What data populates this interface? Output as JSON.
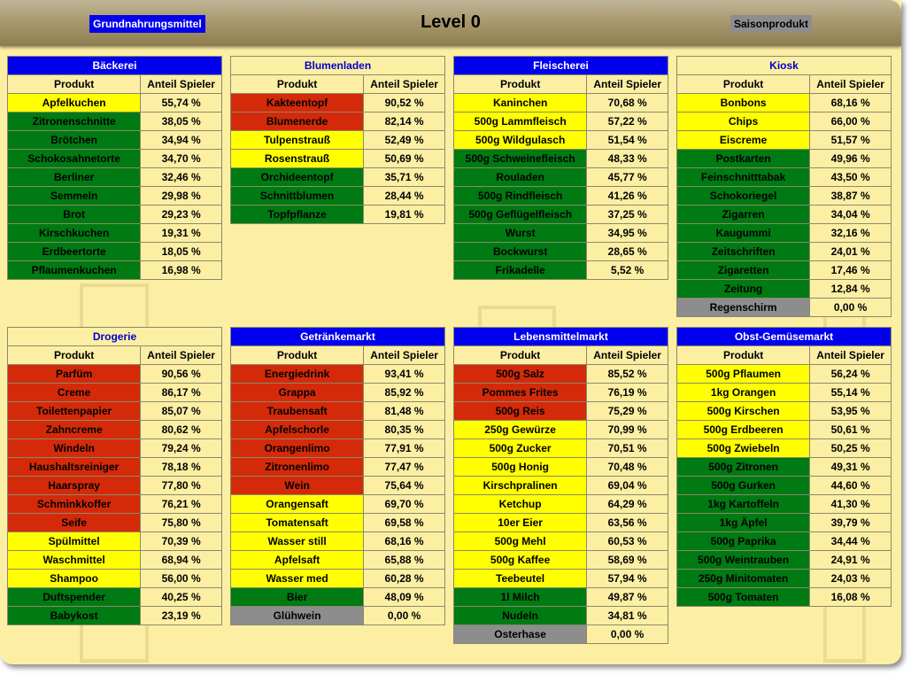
{
  "header": {
    "legend_basic": "Grundnahrungsmittel",
    "title": "Level 0",
    "legend_season": "Saisonprodukt"
  },
  "colors": {
    "red": "#d42a0a",
    "yellow": "#ffff00",
    "green": "#007a12",
    "gray": "#8d8d8d",
    "basic": "#0000ee",
    "background": "#fcefa4"
  },
  "col_product": "Produkt",
  "col_share": "Anteil Spieler",
  "shops": [
    {
      "name": "Bäckerei",
      "style": "blue",
      "rows": [
        {
          "product": "Apfelkuchen",
          "share": "55,74 %",
          "color": "yellow"
        },
        {
          "product": "Zitronenschnitte",
          "share": "38,05 %",
          "color": "green"
        },
        {
          "product": "Brötchen",
          "share": "34,94 %",
          "color": "green"
        },
        {
          "product": "Schokosahnetorte",
          "share": "34,70 %",
          "color": "green"
        },
        {
          "product": "Berliner",
          "share": "32,46 %",
          "color": "green"
        },
        {
          "product": "Semmeln",
          "share": "29,98 %",
          "color": "green"
        },
        {
          "product": "Brot",
          "share": "29,23 %",
          "color": "green"
        },
        {
          "product": "Kirschkuchen",
          "share": "19,31 %",
          "color": "green"
        },
        {
          "product": "Erdbeertorte",
          "share": "18,05 %",
          "color": "green"
        },
        {
          "product": "Pflaumenkuchen",
          "share": "16,98 %",
          "color": "green"
        }
      ]
    },
    {
      "name": "Blumenladen",
      "style": "pale",
      "rows": [
        {
          "product": "Kakteentopf",
          "share": "90,52 %",
          "color": "red"
        },
        {
          "product": "Blumenerde",
          "share": "82,14 %",
          "color": "red"
        },
        {
          "product": "Tulpenstrauß",
          "share": "52,49 %",
          "color": "yellow"
        },
        {
          "product": "Rosenstrauß",
          "share": "50,69 %",
          "color": "yellow"
        },
        {
          "product": "Orchideentopf",
          "share": "35,71 %",
          "color": "green"
        },
        {
          "product": "Schnittblumen",
          "share": "28,44 %",
          "color": "green"
        },
        {
          "product": "Topfpflanze",
          "share": "19,81 %",
          "color": "green"
        }
      ]
    },
    {
      "name": "Fleischerei",
      "style": "blue",
      "rows": [
        {
          "product": "Kaninchen",
          "share": "70,68 %",
          "color": "yellow"
        },
        {
          "product": "500g Lammfleisch",
          "share": "57,22 %",
          "color": "yellow"
        },
        {
          "product": "500g Wildgulasch",
          "share": "51,54 %",
          "color": "yellow"
        },
        {
          "product": "500g Schweinefleisch",
          "share": "48,33 %",
          "color": "green"
        },
        {
          "product": "Rouladen",
          "share": "45,77 %",
          "color": "green"
        },
        {
          "product": "500g Rindfleisch",
          "share": "41,26 %",
          "color": "green"
        },
        {
          "product": "500g Geflügelfleisch",
          "share": "37,25 %",
          "color": "green"
        },
        {
          "product": "Wurst",
          "share": "34,95 %",
          "color": "green"
        },
        {
          "product": "Bockwurst",
          "share": "28,65 %",
          "color": "green"
        },
        {
          "product": "Frikadelle",
          "share": "5,52 %",
          "color": "green"
        }
      ]
    },
    {
      "name": "Kiosk",
      "style": "pale",
      "rows": [
        {
          "product": "Bonbons",
          "share": "68,16 %",
          "color": "yellow"
        },
        {
          "product": "Chips",
          "share": "66,00 %",
          "color": "yellow"
        },
        {
          "product": "Eiscreme",
          "share": "51,57 %",
          "color": "yellow"
        },
        {
          "product": "Postkarten",
          "share": "49,96 %",
          "color": "green"
        },
        {
          "product": "Feinschnitttabak",
          "share": "43,50 %",
          "color": "green"
        },
        {
          "product": "Schokoriegel",
          "share": "38,87 %",
          "color": "green"
        },
        {
          "product": "Zigarren",
          "share": "34,04 %",
          "color": "green"
        },
        {
          "product": "Kaugummi",
          "share": "32,16 %",
          "color": "green"
        },
        {
          "product": "Zeitschriften",
          "share": "24,01 %",
          "color": "green"
        },
        {
          "product": "Zigaretten",
          "share": "17,46 %",
          "color": "green"
        },
        {
          "product": "Zeitung",
          "share": "12,84 %",
          "color": "green"
        },
        {
          "product": "Regenschirm",
          "share": "0,00 %",
          "color": "gray"
        }
      ]
    },
    {
      "name": "Drogerie",
      "style": "pale",
      "rows": [
        {
          "product": "Parfüm",
          "share": "90,56 %",
          "color": "red"
        },
        {
          "product": "Creme",
          "share": "86,17 %",
          "color": "red"
        },
        {
          "product": "Toilettenpapier",
          "share": "85,07 %",
          "color": "red"
        },
        {
          "product": "Zahncreme",
          "share": "80,62 %",
          "color": "red"
        },
        {
          "product": "Windeln",
          "share": "79,24 %",
          "color": "red"
        },
        {
          "product": "Haushaltsreiniger",
          "share": "78,18 %",
          "color": "red"
        },
        {
          "product": "Haarspray",
          "share": "77,80 %",
          "color": "red"
        },
        {
          "product": "Schminkkoffer",
          "share": "76,21 %",
          "color": "red"
        },
        {
          "product": "Seife",
          "share": "75,80 %",
          "color": "red"
        },
        {
          "product": "Spülmittel",
          "share": "70,39 %",
          "color": "yellow"
        },
        {
          "product": "Waschmittel",
          "share": "68,94 %",
          "color": "yellow"
        },
        {
          "product": "Shampoo",
          "share": "56,00 %",
          "color": "yellow"
        },
        {
          "product": "Duftspender",
          "share": "40,25 %",
          "color": "green"
        },
        {
          "product": "Babykost",
          "share": "23,19 %",
          "color": "green"
        }
      ]
    },
    {
      "name": "Getränkemarkt",
      "style": "blue",
      "rows": [
        {
          "product": "Energiedrink",
          "share": "93,41 %",
          "color": "red"
        },
        {
          "product": "Grappa",
          "share": "85,92 %",
          "color": "red"
        },
        {
          "product": "Traubensaft",
          "share": "81,48 %",
          "color": "red"
        },
        {
          "product": "Apfelschorle",
          "share": "80,35 %",
          "color": "red"
        },
        {
          "product": "Orangenlimo",
          "share": "77,91 %",
          "color": "red"
        },
        {
          "product": "Zitronenlimo",
          "share": "77,47 %",
          "color": "red"
        },
        {
          "product": "Wein",
          "share": "75,64 %",
          "color": "red"
        },
        {
          "product": "Orangensaft",
          "share": "69,70 %",
          "color": "yellow"
        },
        {
          "product": "Tomatensaft",
          "share": "69,58 %",
          "color": "yellow"
        },
        {
          "product": "Wasser still",
          "share": "68,16 %",
          "color": "yellow"
        },
        {
          "product": "Apfelsaft",
          "share": "65,88 %",
          "color": "yellow"
        },
        {
          "product": "Wasser med",
          "share": "60,28 %",
          "color": "yellow"
        },
        {
          "product": "Bier",
          "share": "48,09 %",
          "color": "green"
        },
        {
          "product": "Glühwein",
          "share": "0,00 %",
          "color": "gray"
        }
      ]
    },
    {
      "name": "Lebensmittelmarkt",
      "style": "blue",
      "rows": [
        {
          "product": "500g Salz",
          "share": "85,52 %",
          "color": "red"
        },
        {
          "product": "Pommes Frites",
          "share": "76,19 %",
          "color": "red"
        },
        {
          "product": "500g Reis",
          "share": "75,29 %",
          "color": "red"
        },
        {
          "product": "250g Gewürze",
          "share": "70,99 %",
          "color": "yellow"
        },
        {
          "product": "500g Zucker",
          "share": "70,51 %",
          "color": "yellow"
        },
        {
          "product": "500g Honig",
          "share": "70,48 %",
          "color": "yellow"
        },
        {
          "product": "Kirschpralinen",
          "share": "69,04 %",
          "color": "yellow"
        },
        {
          "product": "Ketchup",
          "share": "64,29 %",
          "color": "yellow"
        },
        {
          "product": "10er Eier",
          "share": "63,56 %",
          "color": "yellow"
        },
        {
          "product": "500g Mehl",
          "share": "60,53 %",
          "color": "yellow"
        },
        {
          "product": "500g Kaffee",
          "share": "58,69 %",
          "color": "yellow"
        },
        {
          "product": "Teebeutel",
          "share": "57,94 %",
          "color": "yellow"
        },
        {
          "product": "1l Milch",
          "share": "49,87 %",
          "color": "green"
        },
        {
          "product": "Nudeln",
          "share": "34,81 %",
          "color": "green"
        },
        {
          "product": "Osterhase",
          "share": "0,00 %",
          "color": "gray"
        }
      ]
    },
    {
      "name": "Obst-Gemüsemarkt",
      "style": "blue",
      "rows": [
        {
          "product": "500g Pflaumen",
          "share": "56,24 %",
          "color": "yellow"
        },
        {
          "product": "1kg Orangen",
          "share": "55,14 %",
          "color": "yellow"
        },
        {
          "product": "500g Kirschen",
          "share": "53,95 %",
          "color": "yellow"
        },
        {
          "product": "500g Erdbeeren",
          "share": "50,61 %",
          "color": "yellow"
        },
        {
          "product": "500g Zwiebeln",
          "share": "50,25 %",
          "color": "yellow"
        },
        {
          "product": "500g Zitronen",
          "share": "49,31 %",
          "color": "green"
        },
        {
          "product": "500g Gurken",
          "share": "44,60 %",
          "color": "green"
        },
        {
          "product": "1kg Kartoffeln",
          "share": "41,30 %",
          "color": "green"
        },
        {
          "product": "1kg Äpfel",
          "share": "39,79 %",
          "color": "green"
        },
        {
          "product": "500g Paprika",
          "share": "34,44 %",
          "color": "green"
        },
        {
          "product": "500g Weintrauben",
          "share": "24,91 %",
          "color": "green"
        },
        {
          "product": "250g Minitomaten",
          "share": "24,03 %",
          "color": "green"
        },
        {
          "product": "500g Tomaten",
          "share": "16,08 %",
          "color": "green"
        }
      ]
    }
  ]
}
